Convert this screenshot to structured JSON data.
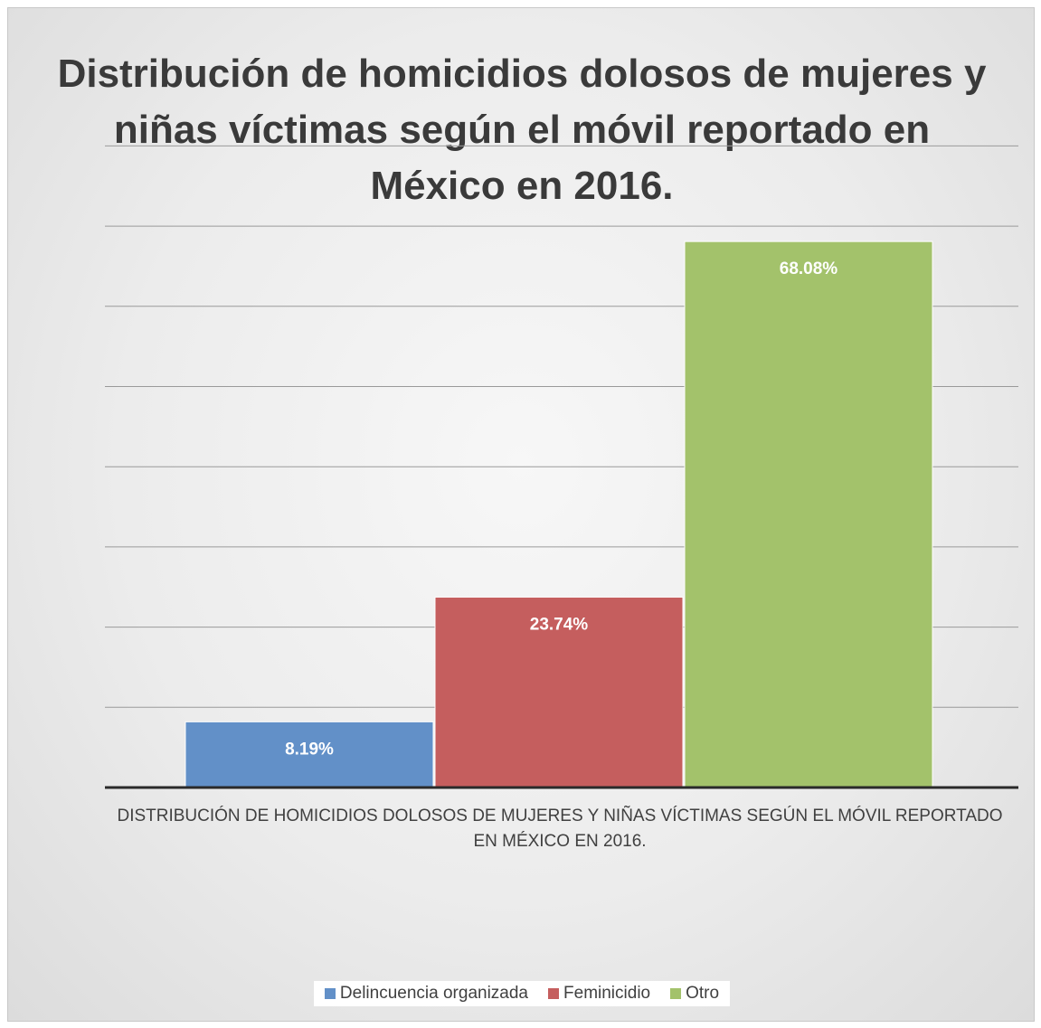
{
  "chart_data": {
    "type": "bar",
    "title": "Distribución de homicidios dolosos de mujeres y niñas víctimas según el móvil reportado en México en 2016.",
    "categories": [
      "DISTRIBUCIÓN DE HOMICIDIOS DOLOSOS DE MUJERES Y NIÑAS VÍCTIMAS SEGÚN EL MÓVIL REPORTADO EN MÉXICO EN 2016."
    ],
    "series": [
      {
        "name": "Delincuencia organizada",
        "values": [
          8.19
        ],
        "label": "8.19%",
        "color": "#6290c8"
      },
      {
        "name": "Feminicidio",
        "values": [
          23.74
        ],
        "label": "23.74%",
        "color": "#c55e5e"
      },
      {
        "name": "Otro",
        "values": [
          68.08
        ],
        "label": "68.08%",
        "color": "#a3c26b"
      }
    ],
    "ylim": [
      0,
      80
    ],
    "grid": true,
    "legend_position": "bottom"
  }
}
